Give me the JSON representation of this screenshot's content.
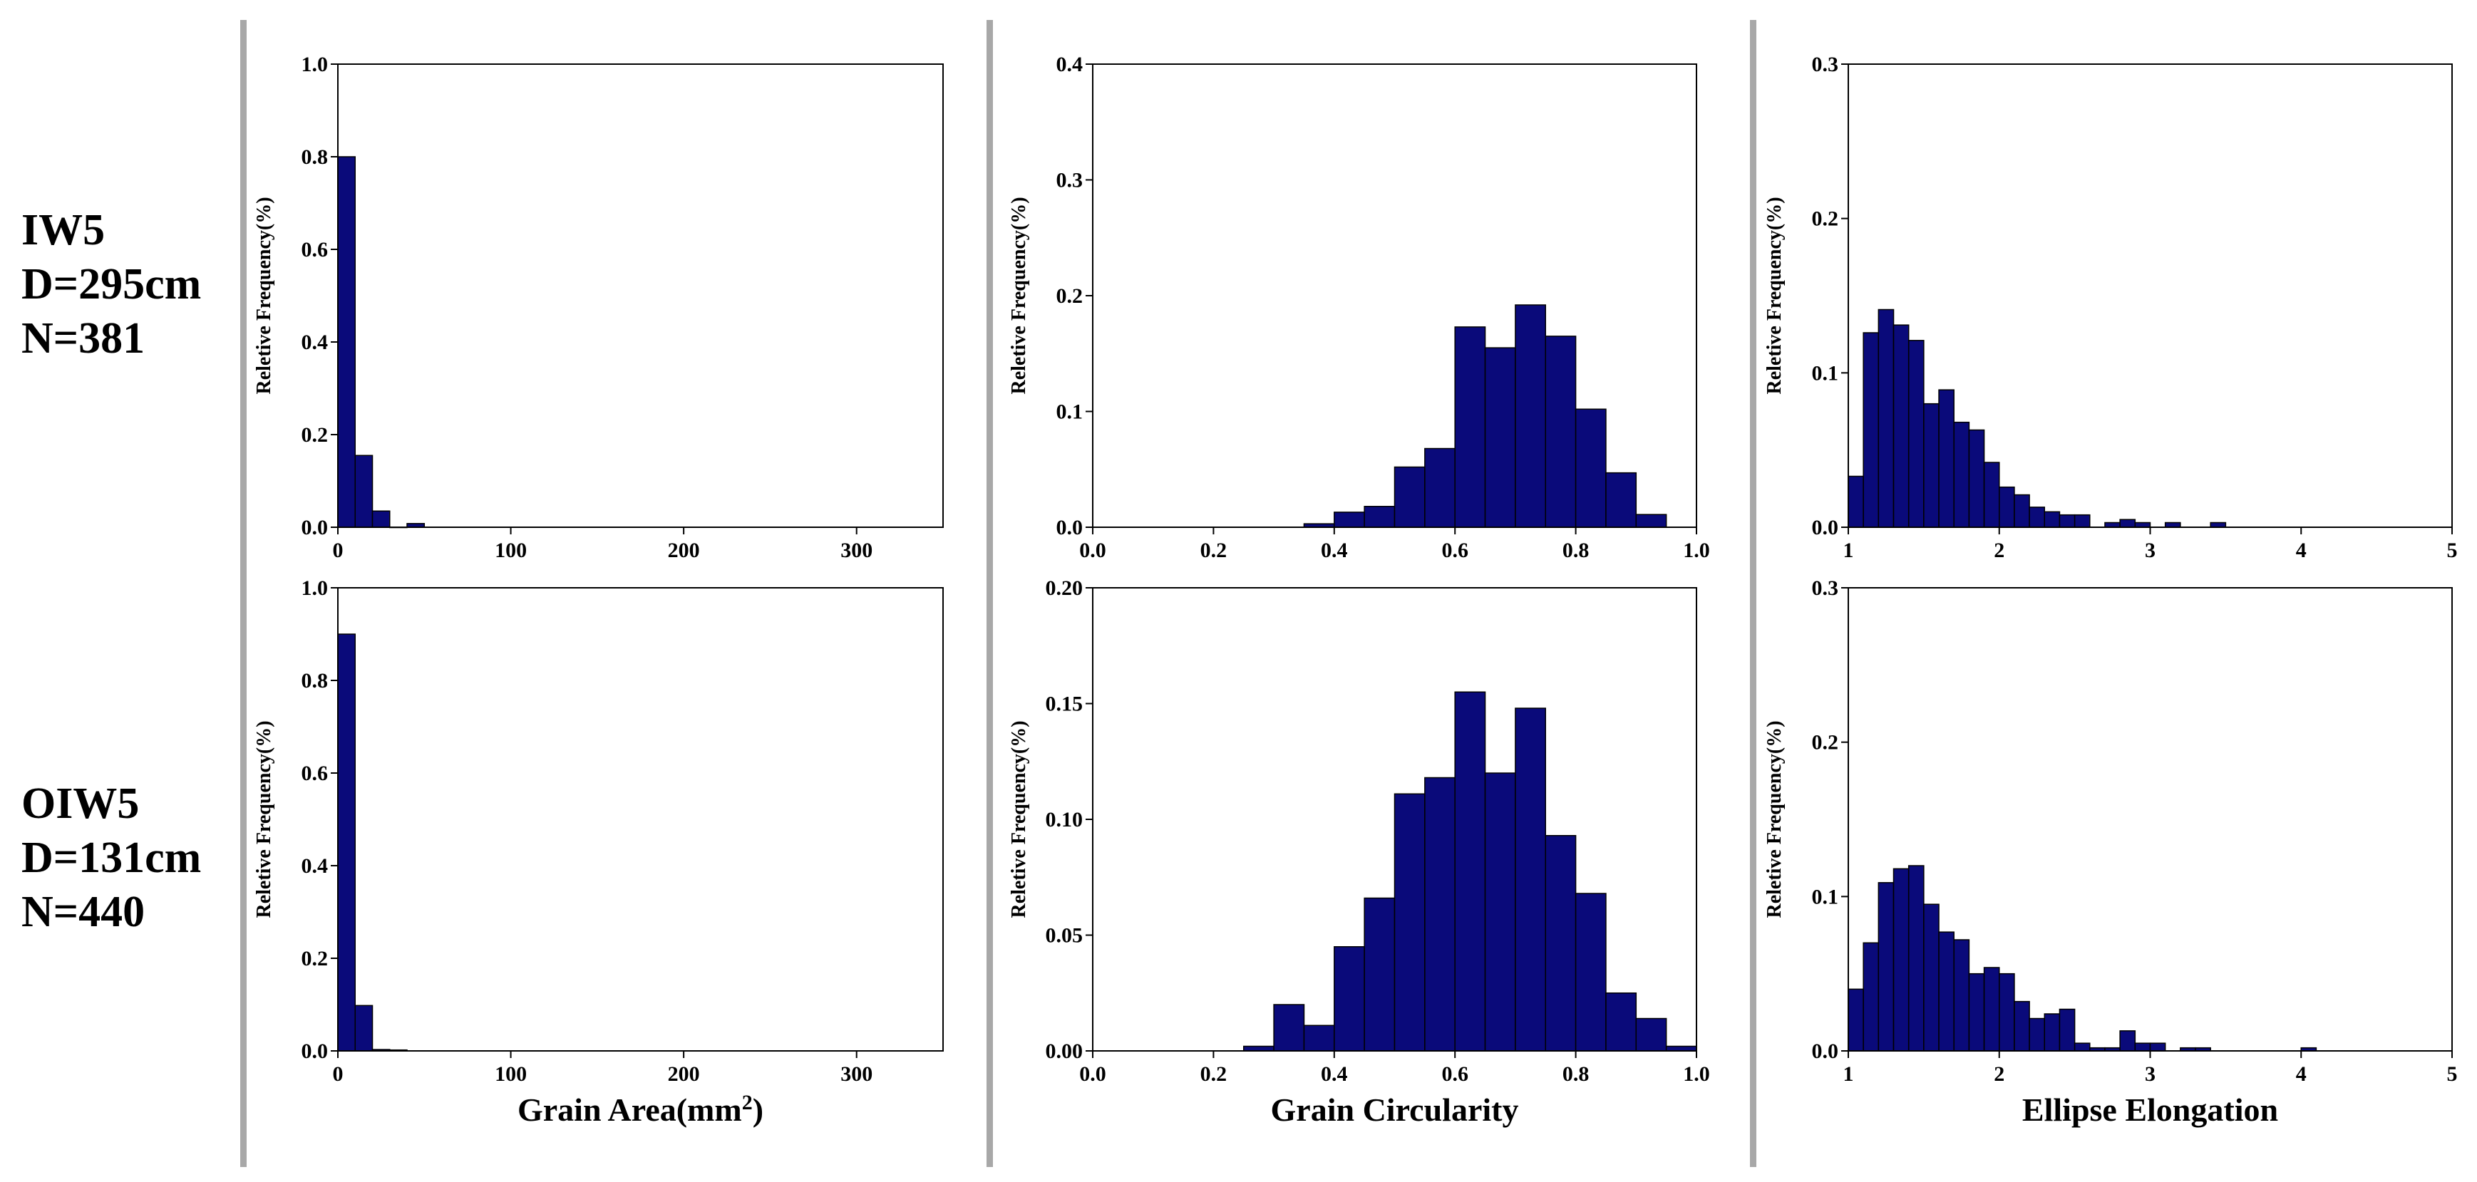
{
  "row_labels": [
    {
      "sample": "IW5",
      "depth": "D=295cm",
      "count": "N=381"
    },
    {
      "sample": "OIW5",
      "depth": "D=131cm",
      "count": "N=440"
    }
  ],
  "colors": {
    "bar_fill": "#0a0a7a",
    "bar_stroke": "#000000",
    "divider": "#a8a8a8"
  },
  "chart_data": [
    {
      "type": "bar",
      "row": 0,
      "col": 0,
      "ylabel": "Reletive Frequency(%)",
      "xlabel": "",
      "xlim": [
        0,
        350
      ],
      "ylim": [
        0,
        1.0
      ],
      "xticks": [
        0,
        100,
        200,
        300
      ],
      "xtick_labels": [
        "0",
        "100",
        "200",
        "300"
      ],
      "yticks": [
        0,
        0.2,
        0.4,
        0.6,
        0.8,
        1.0
      ],
      "ytick_labels": [
        "0.0",
        "0.2",
        "0.4",
        "0.6",
        "0.8",
        "1.0"
      ],
      "bin_width": 10,
      "bins": [
        [
          0,
          0.8
        ],
        [
          10,
          0.155
        ],
        [
          20,
          0.035
        ],
        [
          30,
          0.0
        ],
        [
          40,
          0.008
        ]
      ]
    },
    {
      "type": "bar",
      "row": 0,
      "col": 1,
      "ylabel": "Reletive Frequency(%)",
      "xlabel": "",
      "xlim": [
        0,
        1.0
      ],
      "ylim": [
        0,
        0.4
      ],
      "xticks": [
        0,
        0.2,
        0.4,
        0.6,
        0.8,
        1.0
      ],
      "xtick_labels": [
        "0.0",
        "0.2",
        "0.4",
        "0.6",
        "0.8",
        "1.0"
      ],
      "yticks": [
        0,
        0.1,
        0.2,
        0.3,
        0.4
      ],
      "ytick_labels": [
        "0.0",
        "0.1",
        "0.2",
        "0.3",
        "0.4"
      ],
      "bin_width": 0.05,
      "bins": [
        [
          0.35,
          0.003
        ],
        [
          0.4,
          0.013
        ],
        [
          0.45,
          0.018
        ],
        [
          0.5,
          0.052
        ],
        [
          0.55,
          0.068
        ],
        [
          0.6,
          0.173
        ],
        [
          0.65,
          0.155
        ],
        [
          0.7,
          0.192
        ],
        [
          0.75,
          0.165
        ],
        [
          0.8,
          0.102
        ],
        [
          0.85,
          0.047
        ],
        [
          0.9,
          0.011
        ]
      ]
    },
    {
      "type": "bar",
      "row": 0,
      "col": 2,
      "ylabel": "Reletive Frequency(%)",
      "xlabel": "",
      "xlim": [
        1,
        5
      ],
      "ylim": [
        0,
        0.3
      ],
      "xticks": [
        1,
        2,
        3,
        4,
        5
      ],
      "xtick_labels": [
        "1",
        "2",
        "3",
        "4",
        "5"
      ],
      "yticks": [
        0,
        0.1,
        0.2,
        0.3
      ],
      "ytick_labels": [
        "0.0",
        "0.1",
        "0.2",
        "0.3"
      ],
      "bin_width": 0.1,
      "bins": [
        [
          1.0,
          0.033
        ],
        [
          1.1,
          0.126
        ],
        [
          1.2,
          0.141
        ],
        [
          1.3,
          0.131
        ],
        [
          1.4,
          0.121
        ],
        [
          1.5,
          0.08
        ],
        [
          1.6,
          0.089
        ],
        [
          1.7,
          0.068
        ],
        [
          1.8,
          0.063
        ],
        [
          1.9,
          0.042
        ],
        [
          2.0,
          0.026
        ],
        [
          2.1,
          0.021
        ],
        [
          2.2,
          0.013
        ],
        [
          2.3,
          0.01
        ],
        [
          2.4,
          0.008
        ],
        [
          2.5,
          0.008
        ],
        [
          2.7,
          0.003
        ],
        [
          2.8,
          0.005
        ],
        [
          2.9,
          0.003
        ],
        [
          3.1,
          0.003
        ],
        [
          3.4,
          0.003
        ]
      ]
    },
    {
      "type": "bar",
      "row": 1,
      "col": 0,
      "ylabel": "Reletive Frequency(%)",
      "xlabel": "Grain Area(mm",
      "xlabel_sup": "2",
      "xlabel_end": ")",
      "xlim": [
        0,
        350
      ],
      "ylim": [
        0,
        1.0
      ],
      "xticks": [
        0,
        100,
        200,
        300
      ],
      "xtick_labels": [
        "0",
        "100",
        "200",
        "300"
      ],
      "yticks": [
        0,
        0.2,
        0.4,
        0.6,
        0.8,
        1.0
      ],
      "ytick_labels": [
        "0.0",
        "0.2",
        "0.4",
        "0.6",
        "0.8",
        "1.0"
      ],
      "bin_width": 10,
      "bins": [
        [
          0,
          0.9
        ],
        [
          10,
          0.098
        ],
        [
          20,
          0.003
        ],
        [
          30,
          0.002
        ]
      ]
    },
    {
      "type": "bar",
      "row": 1,
      "col": 1,
      "ylabel": "Reletive Frequency(%)",
      "xlabel": "Grain Circularity",
      "xlim": [
        0,
        1.0
      ],
      "ylim": [
        0,
        0.2
      ],
      "xticks": [
        0,
        0.2,
        0.4,
        0.6,
        0.8,
        1.0
      ],
      "xtick_labels": [
        "0.0",
        "0.2",
        "0.4",
        "0.6",
        "0.8",
        "1.0"
      ],
      "yticks": [
        0,
        0.05,
        0.1,
        0.15,
        0.2
      ],
      "ytick_labels": [
        "0.00",
        "0.05",
        "0.10",
        "0.15",
        "0.20"
      ],
      "bin_width": 0.05,
      "bins": [
        [
          0.25,
          0.002
        ],
        [
          0.3,
          0.02
        ],
        [
          0.35,
          0.011
        ],
        [
          0.4,
          0.045
        ],
        [
          0.45,
          0.066
        ],
        [
          0.5,
          0.111
        ],
        [
          0.55,
          0.118
        ],
        [
          0.6,
          0.155
        ],
        [
          0.65,
          0.12
        ],
        [
          0.7,
          0.148
        ],
        [
          0.75,
          0.093
        ],
        [
          0.8,
          0.068
        ],
        [
          0.85,
          0.025
        ],
        [
          0.9,
          0.014
        ],
        [
          0.95,
          0.002
        ]
      ]
    },
    {
      "type": "bar",
      "row": 1,
      "col": 2,
      "ylabel": "Reletive Frequency(%)",
      "xlabel": "Ellipse Elongation",
      "xlim": [
        1,
        5
      ],
      "ylim": [
        0,
        0.3
      ],
      "xticks": [
        1,
        2,
        3,
        4,
        5
      ],
      "xtick_labels": [
        "1",
        "2",
        "3",
        "4",
        "5"
      ],
      "yticks": [
        0,
        0.1,
        0.2,
        0.3
      ],
      "ytick_labels": [
        "0.0",
        "0.1",
        "0.2",
        "0.3"
      ],
      "bin_width": 0.1,
      "bins": [
        [
          1.0,
          0.04
        ],
        [
          1.1,
          0.07
        ],
        [
          1.2,
          0.109
        ],
        [
          1.3,
          0.118
        ],
        [
          1.4,
          0.12
        ],
        [
          1.5,
          0.095
        ],
        [
          1.6,
          0.077
        ],
        [
          1.7,
          0.072
        ],
        [
          1.8,
          0.05
        ],
        [
          1.9,
          0.054
        ],
        [
          2.0,
          0.05
        ],
        [
          2.1,
          0.032
        ],
        [
          2.2,
          0.021
        ],
        [
          2.3,
          0.024
        ],
        [
          2.4,
          0.027
        ],
        [
          2.5,
          0.005
        ],
        [
          2.6,
          0.002
        ],
        [
          2.7,
          0.002
        ],
        [
          2.8,
          0.013
        ],
        [
          2.9,
          0.005
        ],
        [
          3.0,
          0.005
        ],
        [
          3.2,
          0.002
        ],
        [
          3.3,
          0.002
        ],
        [
          4.0,
          0.002
        ]
      ]
    }
  ]
}
